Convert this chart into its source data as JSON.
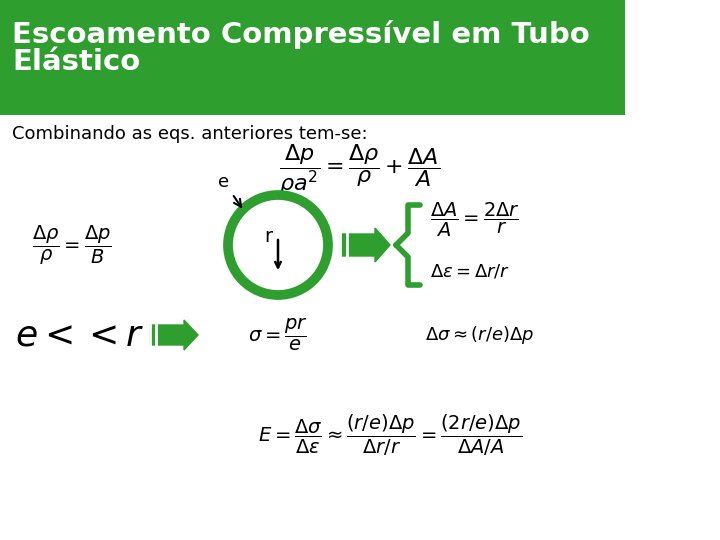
{
  "title": "Escoamento Compressível em Tubo\nElástico",
  "title_bg_color": "#2e9e2e",
  "title_text_color": "#ffffff",
  "subtitle": "Combinando as eqs. anteriores tem-se:",
  "bg_color": "#ffffff",
  "green_color": "#2e9e2e",
  "black_color": "#000000",
  "fig_width": 7.2,
  "fig_height": 5.4
}
